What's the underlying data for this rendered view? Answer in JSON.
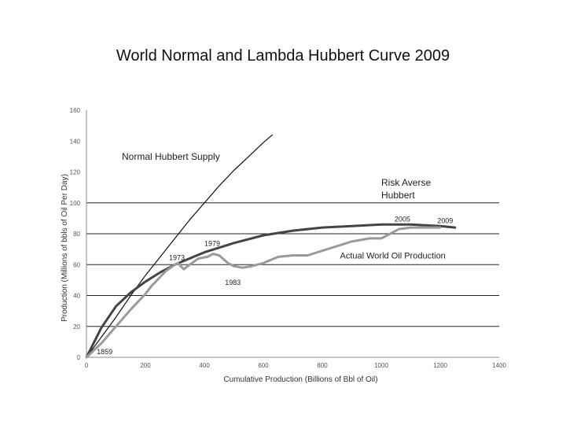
{
  "chart_data": {
    "type": "line",
    "title": "World Normal and Lambda Hubbert Curve 2009",
    "xlabel": "Cumulative Production (Billions of Bbl of Oil)",
    "ylabel": "Production (Millions of bbls of Oil Per Day)",
    "xlim": [
      0,
      1400
    ],
    "ylim": [
      0,
      160
    ],
    "x_ticks": [
      "0",
      "200",
      "400",
      "600",
      "800",
      "1000",
      "1200",
      "1400"
    ],
    "y_ticks": [
      "0",
      "20",
      "40",
      "60",
      "80",
      "100",
      "120",
      "140",
      "160"
    ],
    "y_gridlines": [
      20,
      40,
      60,
      80,
      100
    ],
    "series": [
      {
        "name": "Normal Hubbert Supply",
        "color": "#111111",
        "x": [
          0,
          50,
          100,
          150,
          200,
          250,
          300,
          350,
          400,
          450,
          500,
          550,
          600,
          630
        ],
        "y": [
          0,
          13,
          26,
          40,
          53,
          65,
          77,
          89,
          100,
          111,
          121,
          130,
          139,
          144
        ]
      },
      {
        "name": "Risk Averse Hubbert",
        "color": "#444444",
        "x": [
          0,
          50,
          100,
          150,
          200,
          250,
          300,
          350,
          400,
          450,
          500,
          600,
          700,
          800,
          900,
          1000,
          1100,
          1200,
          1250
        ],
        "y": [
          0,
          19,
          33,
          42,
          49,
          55,
          60,
          64,
          68,
          71,
          74,
          79,
          82,
          84,
          85,
          86,
          86,
          85,
          84
        ]
      },
      {
        "name": "Actual World Oil Production",
        "color": "#9a9a9a",
        "x": [
          0,
          50,
          100,
          150,
          200,
          220,
          250,
          270,
          300,
          310,
          330,
          350,
          380,
          410,
          430,
          450,
          480,
          500,
          530,
          560,
          600,
          650,
          700,
          750,
          800,
          850,
          900,
          930,
          960,
          1000,
          1030,
          1060,
          1100,
          1150,
          1200
        ],
        "y": [
          0,
          9,
          20,
          31,
          41,
          46,
          52,
          56,
          60,
          61,
          57,
          60,
          64,
          65,
          67,
          66,
          61,
          59,
          58,
          59,
          61,
          65,
          66,
          66,
          69,
          72,
          75,
          76,
          77,
          77,
          80,
          83,
          84,
          84,
          84
        ]
      }
    ],
    "annotations": [
      {
        "text": "Normal Hubbert Supply",
        "x": 120,
        "y": 128,
        "size": 12
      },
      {
        "text": "Risk Averse",
        "x": 1000,
        "y": 111,
        "size": 12
      },
      {
        "text": "Hubbert",
        "x": 1000,
        "y": 103,
        "size": 12
      },
      {
        "text": "Actual World Oil Production",
        "x": 860,
        "y": 64,
        "size": 11
      },
      {
        "text": "1979",
        "x": 400,
        "y": 72,
        "size": 9
      },
      {
        "text": "1973",
        "x": 280,
        "y": 63,
        "size": 9
      },
      {
        "text": "1983",
        "x": 470,
        "y": 47,
        "size": 9
      },
      {
        "text": "1859",
        "x": 35,
        "y": 2,
        "size": 9
      },
      {
        "text": "2005",
        "x": 1045,
        "y": 88,
        "size": 9
      },
      {
        "text": "2009",
        "x": 1190,
        "y": 87,
        "size": 9
      }
    ]
  }
}
